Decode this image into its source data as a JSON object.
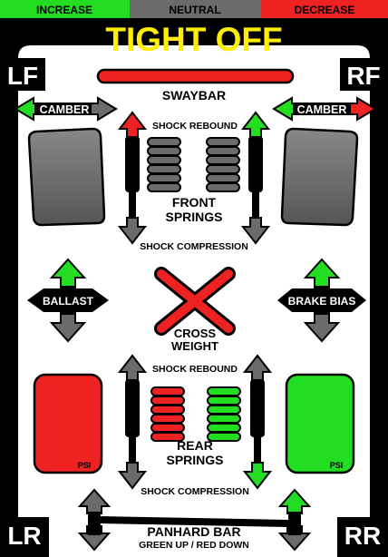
{
  "legend": {
    "increase": "INCREASE",
    "neutral": "NEUTRAL",
    "decrease": "DECREASE"
  },
  "title": "TIGHT OFF",
  "corners": {
    "lf": "LF",
    "rf": "RF",
    "lr": "LR",
    "rr": "RR"
  },
  "labels": {
    "swaybar": "SWAYBAR",
    "camber_left": "CAMBER",
    "camber_right": "CAMBER",
    "shock_rebound_front": "SHOCK REBOUND",
    "front_springs_1": "FRONT",
    "front_springs_2": "SPRINGS",
    "shock_compression_front": "SHOCK COMPRESSION",
    "ballast": "BALLAST",
    "brake_bias": "BRAKE BIAS",
    "cross_weight_1": "CROSS",
    "cross_weight_2": "WEIGHT",
    "shock_rebound_rear": "SHOCK REBOUND",
    "rear_springs_1": "REAR",
    "rear_springs_2": "SPRINGS",
    "shock_compression_rear": "SHOCK COMPRESSION",
    "psi_left": "PSI",
    "psi_right": "PSI",
    "panhard_bar": "PANHARD BAR",
    "panhard_note": "GREEN UP / RED DOWN"
  },
  "colors": {
    "increase": "#22dd22",
    "neutral": "#666666",
    "decrease": "#ee2222",
    "title": "#ffee00",
    "dark": "#000000"
  }
}
